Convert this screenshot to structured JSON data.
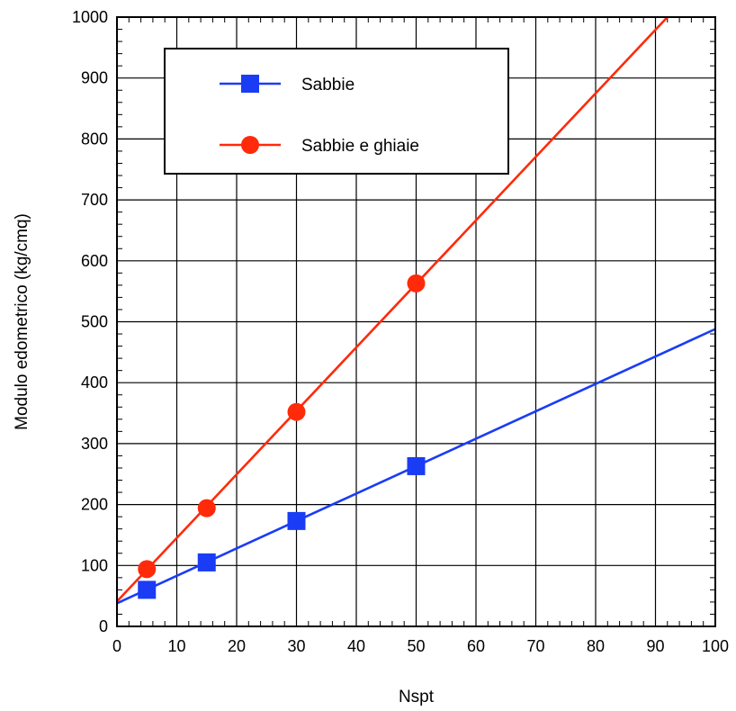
{
  "chart_data": {
    "type": "line",
    "xlabel": "Nspt",
    "ylabel": "Modulo edometrico (kg/cmq)",
    "xlim": [
      0,
      100
    ],
    "ylim": [
      0,
      1000
    ],
    "x_ticks": [
      0,
      10,
      20,
      30,
      40,
      50,
      60,
      70,
      80,
      90,
      100
    ],
    "y_ticks": [
      0,
      100,
      200,
      300,
      400,
      500,
      600,
      700,
      800,
      900,
      1000
    ],
    "grid": true,
    "legend_position": "top-left",
    "series": [
      {
        "name": "Sabbie",
        "color": "#1a3cf5",
        "marker": "square",
        "points": [
          {
            "x": 5,
            "y": 60
          },
          {
            "x": 15,
            "y": 105
          },
          {
            "x": 30,
            "y": 173
          },
          {
            "x": 50,
            "y": 263
          }
        ],
        "line": [
          {
            "x": 0,
            "y": 38
          },
          {
            "x": 100,
            "y": 488
          }
        ]
      },
      {
        "name": "Sabbie e ghiaie",
        "color": "#ff2a0a",
        "marker": "circle",
        "points": [
          {
            "x": 5,
            "y": 94
          },
          {
            "x": 15,
            "y": 194
          },
          {
            "x": 30,
            "y": 352
          },
          {
            "x": 50,
            "y": 563
          }
        ],
        "line": [
          {
            "x": 0,
            "y": 41
          },
          {
            "x": 92,
            "y": 1000
          }
        ]
      }
    ]
  }
}
